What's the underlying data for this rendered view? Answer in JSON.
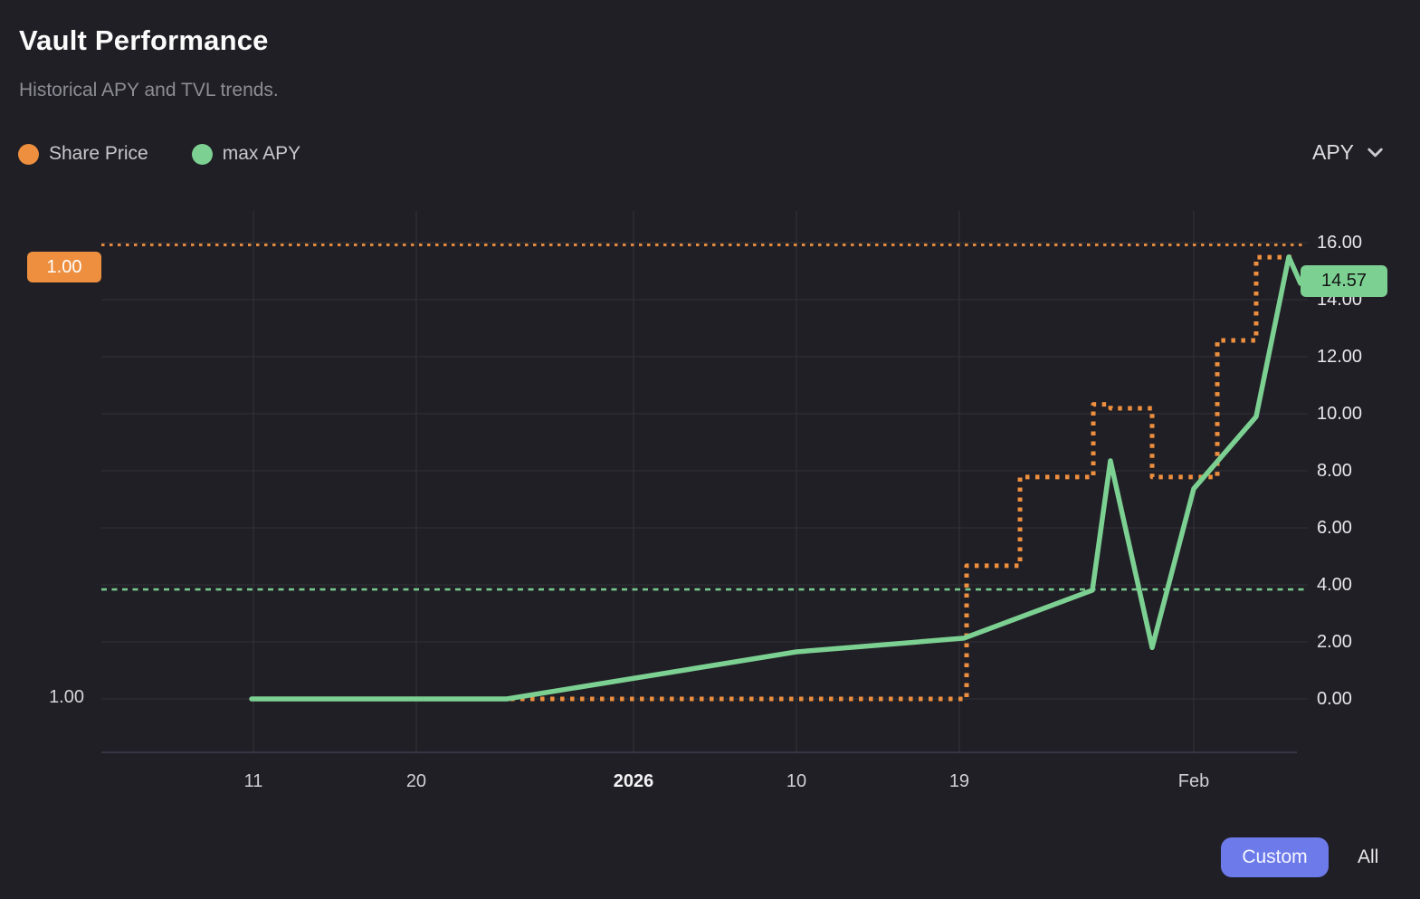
{
  "header": {
    "title": "Vault Performance",
    "subtitle": "Historical APY and TVL trends."
  },
  "legend": {
    "items": [
      {
        "label": "Share Price",
        "color": "#ED8F3F"
      },
      {
        "label": "max APY",
        "color": "#7CD092"
      }
    ]
  },
  "metric_selector": {
    "label": "APY"
  },
  "badges": {
    "share_price_current": "1.00",
    "share_price_axis_min": "1.00",
    "max_apy_current": "14.57"
  },
  "time_range": {
    "custom_label": "Custom",
    "all_label": "All",
    "selected": "Custom"
  },
  "colors": {
    "background": "#201F25",
    "grid": "#2F2F34",
    "axis_line": "#3D3C50",
    "orange": "#ED8F3F",
    "green": "#7CD092",
    "button": "#6D7BEA",
    "y_label": "#E6E6EA",
    "x_label": "#CFCFD4"
  },
  "chart_data": {
    "type": "line",
    "title": "Vault Performance",
    "legend_position": "top-left",
    "grid": true,
    "y_axis_side": "right",
    "y_range": [
      0,
      17.1
    ],
    "y_ticks": [
      {
        "label": "16.00",
        "v": 16
      },
      {
        "label": "14.00",
        "v": 14
      },
      {
        "label": "12.00",
        "v": 12
      },
      {
        "label": "10.00",
        "v": 10
      },
      {
        "label": "8.00",
        "v": 8
      },
      {
        "label": "6.00",
        "v": 6
      },
      {
        "label": "4.00",
        "v": 4
      },
      {
        "label": "2.00",
        "v": 2
      },
      {
        "label": "0.00",
        "v": 0
      }
    ],
    "x_ticks": [
      {
        "label": "11",
        "f": 0.1272,
        "bold": false
      },
      {
        "label": "20",
        "f": 0.2634,
        "bold": false
      },
      {
        "label": "2026",
        "f": 0.4451,
        "bold": true
      },
      {
        "label": "10",
        "f": 0.5814,
        "bold": false
      },
      {
        "label": "19",
        "f": 0.7176,
        "bold": false
      },
      {
        "label": "Feb",
        "f": 0.9137,
        "bold": false
      }
    ],
    "series": [
      {
        "name": "Share Price",
        "color": "#ED8F3F",
        "line_style": "dotted",
        "shape": "step",
        "note": "plotted on a hidden share-price scale; values below are plot positions in APY-axis units, displayed share price reads 1.00",
        "start_f": 0.1257,
        "steps": [
          {
            "v": 0.0,
            "to_f": 0.7237,
            "from_date": "Dec 11",
            "to_date": "Jan 19"
          },
          {
            "v": 4.67,
            "to_f": 0.7684,
            "to_date": "Jan 22"
          },
          {
            "v": 7.78,
            "to_f": 0.8297,
            "to_date": "Jan 26"
          },
          {
            "v": 10.33,
            "to_f": 0.8441,
            "to_date": "Jan 27"
          },
          {
            "v": 10.19,
            "to_f": 0.8789,
            "to_date": "Jan 29"
          },
          {
            "v": 7.78,
            "to_f": 0.9334,
            "to_date": "Feb 2"
          },
          {
            "v": 12.57,
            "to_f": 0.9659,
            "to_date": "Feb 4"
          },
          {
            "v": 15.49,
            "to_f": 0.9977,
            "to_date": "Feb 6"
          }
        ]
      },
      {
        "name": "max APY",
        "color": "#7CD092",
        "line_style": "solid",
        "shape": "linear",
        "points": [
          {
            "f": 0.1257,
            "v": 0.0,
            "date": "Dec 11"
          },
          {
            "f": 0.3391,
            "v": 0.0,
            "date": "Dec 25"
          },
          {
            "f": 0.5814,
            "v": 1.65,
            "date": "Jan 10"
          },
          {
            "f": 0.7214,
            "v": 2.13,
            "date": "Jan 19"
          },
          {
            "f": 0.8289,
            "v": 3.81,
            "date": "Jan 26"
          },
          {
            "f": 0.844,
            "v": 8.35,
            "date": "Jan 27"
          },
          {
            "f": 0.8789,
            "v": 1.8,
            "date": "Jan 29"
          },
          {
            "f": 0.9137,
            "v": 7.37,
            "date": "Feb 1"
          },
          {
            "f": 0.9659,
            "v": 9.9,
            "date": "Feb 4"
          },
          {
            "f": 0.9932,
            "v": 15.5,
            "date": "Feb 6"
          },
          {
            "f": 1.003,
            "v": 14.57,
            "date": "Feb 7"
          }
        ]
      }
    ],
    "ref_lines": [
      {
        "series": "Share Price",
        "v": 15.92,
        "style": "dotted",
        "color": "#ED8F3F",
        "meaning": "current share price 1.00"
      },
      {
        "series": "max APY",
        "v": 3.84,
        "style": "dashed",
        "color": "#7CD092",
        "meaning": "APY reference level"
      }
    ],
    "current_values": {
      "share_price": "1.00",
      "max_apy": "14.57"
    }
  }
}
